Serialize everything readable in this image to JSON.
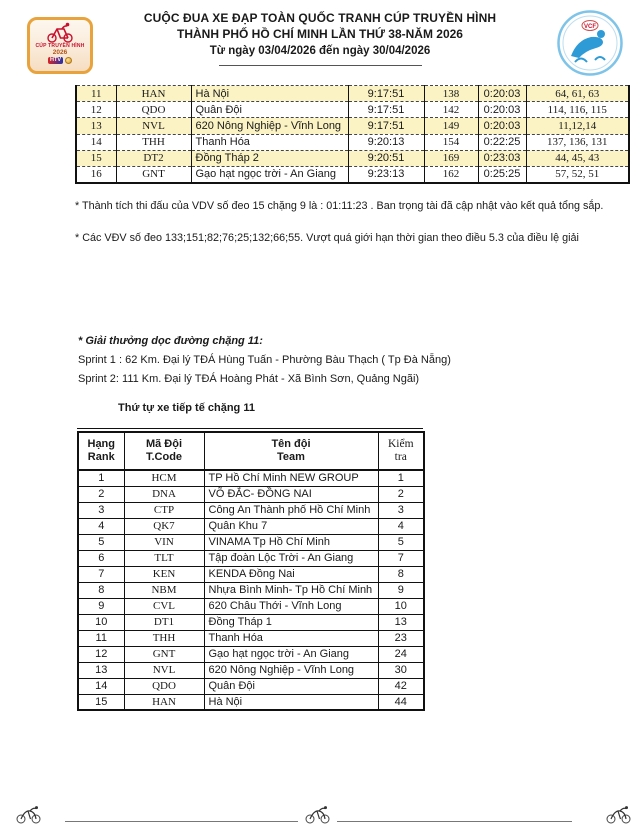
{
  "colors": {
    "highlight_yellow": "#fbf3c4",
    "logo_gold": "#e8a33d",
    "logo_red": "#c8102e",
    "logo_blue": "#2e9bd6"
  },
  "header": {
    "title_line1": "CUỘC ĐUA XE ĐẠP TOÀN QUỐC TRANH CÚP TRUYỀN HÌNH",
    "title_line2": "THÀNH PHỐ HỒ CHÍ MINH LẦN THỨ 38-NĂM 2026",
    "title_line3": "Từ ngày 03/04/2026 đến ngày 30/04/2026",
    "left_logo": {
      "line1": "CÚP TRUYỀN HÌNH",
      "line2": "2026",
      "line3": "HTV"
    },
    "right_logo": {
      "label": "VCF"
    }
  },
  "results_table": {
    "rows": [
      [
        "11",
        "HAN",
        "Hà Nội",
        "9:17:51",
        "138",
        "0:20:03",
        "64, 61, 63"
      ],
      [
        "12",
        "QDO",
        "Quân Đội",
        "9:17:51",
        "142",
        "0:20:03",
        "114, 116, 115"
      ],
      [
        "13",
        "NVL",
        "620 Nông Nghiệp - Vĩnh Long",
        "9:17:51",
        "149",
        "0:20:03",
        "11,12,14"
      ],
      [
        "14",
        "THH",
        "Thanh Hóa",
        "9:20:13",
        "154",
        "0:22:25",
        "137, 136, 131"
      ],
      [
        "15",
        "DT2",
        "Đồng Tháp 2",
        "9:20:51",
        "169",
        "0:23:03",
        "44, 45, 43"
      ],
      [
        "16",
        "GNT",
        "Gạo hạt ngọc trời - An Giang",
        "9:23:13",
        "162",
        "0:25:25",
        "57, 52, 51"
      ]
    ]
  },
  "notes": {
    "note1": "* Thành tích thi đấu của VDV số đeo 15 chặng 9 là : 01:11:23 . Ban trọng tài đã cập nhật vào kết quả tổng sắp.",
    "note2": "* Các VĐV số đeo 133;151;82;76;25;132;66;55. Vượt quá giới hạn thời gian theo điều 5.3 của điều lệ giải"
  },
  "sprint_section": {
    "title": "* Giải thưởng dọc đường chặng 11:",
    "sprint1": "Sprint 1 : 62 Km. Đại lý TĐÁ Hùng Tuấn - Phường Bàu Thạch ( Tp Đà Nẵng)",
    "sprint2": "Sprint 2: 111 Km. Đại lý TĐÁ Hoàng Phát - Xã Bình Sơn, Quảng Ngãi)"
  },
  "supply_table": {
    "title": "Thứ tự xe tiếp tế chặng 11",
    "headers": {
      "rank_vi": "Hạng",
      "rank_en": "Rank",
      "code_vi": "Mã Đội",
      "code_en": "T.Code",
      "team_vi": "Tên đội",
      "team_en": "Team",
      "check_vi": "Kiểm",
      "check_en": "tra"
    },
    "rows": [
      [
        "1",
        "HCM",
        "TP Hồ Chí Minh NEW GROUP",
        "1"
      ],
      [
        "2",
        "DNA",
        "VÕ ĐẮC- ĐỒNG NAI",
        "2"
      ],
      [
        "3",
        "CTP",
        "Công An Thành phố Hồ Chí Minh",
        "3"
      ],
      [
        "4",
        "QK7",
        "Quân Khu 7",
        "4"
      ],
      [
        "5",
        "VIN",
        "VINAMA Tp Hồ Chí Minh",
        "5"
      ],
      [
        "6",
        "TLT",
        "Tập đoàn Lộc Trời - An Giang",
        "7"
      ],
      [
        "7",
        "KEN",
        "KENDA Đồng Nai",
        "8"
      ],
      [
        "8",
        "NBM",
        "Nhựa Bình Minh- Tp Hồ Chí Minh",
        "9"
      ],
      [
        "9",
        "CVL",
        "620 Châu Thới - Vĩnh Long",
        "10"
      ],
      [
        "10",
        "DT1",
        "Đồng Tháp 1",
        "13"
      ],
      [
        "11",
        "THH",
        "Thanh Hóa",
        "23"
      ],
      [
        "12",
        "GNT",
        "Gạo hạt ngọc trời - An Giang",
        "24"
      ],
      [
        "13",
        "NVL",
        "620 Nông Nghiệp - Vĩnh Long",
        "30"
      ],
      [
        "14",
        "QDO",
        "Quân Đội",
        "42"
      ],
      [
        "15",
        "HAN",
        "Hà Nội",
        "44"
      ]
    ]
  }
}
